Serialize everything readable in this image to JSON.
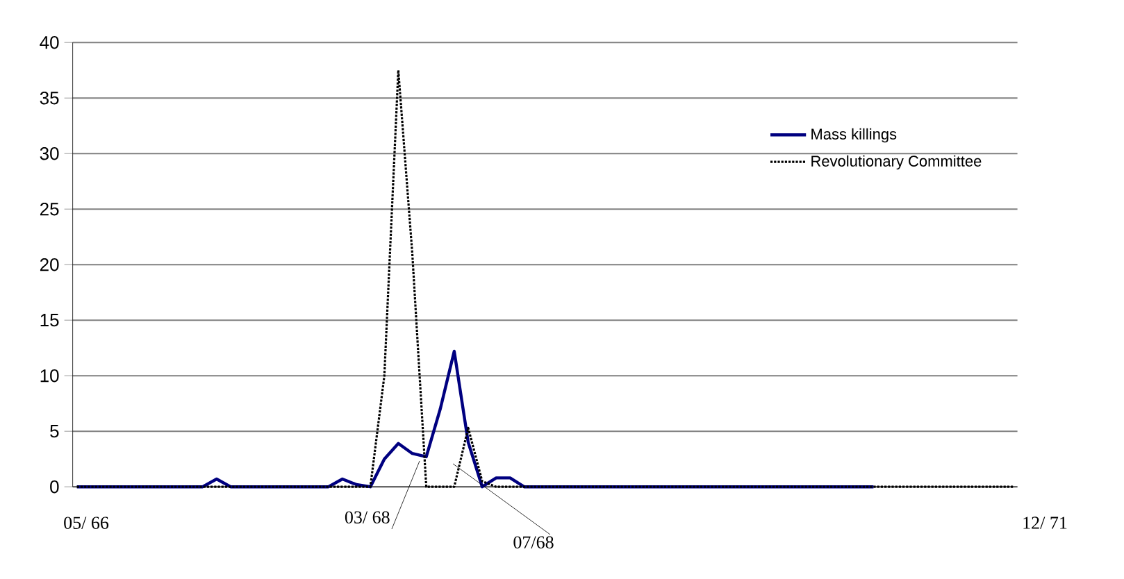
{
  "chart_data": {
    "type": "line",
    "categories": [
      null,
      null,
      null,
      null,
      null,
      null,
      null,
      null,
      null,
      null,
      null,
      null,
      null,
      null,
      null,
      null,
      null,
      null,
      null,
      null,
      null,
      null,
      null,
      null,
      null,
      null,
      null,
      null,
      null,
      null,
      null,
      null,
      null,
      null,
      null,
      null,
      null,
      null,
      null,
      null,
      null,
      null,
      null,
      null,
      null,
      null,
      null,
      null,
      null,
      null,
      null,
      null,
      null,
      null,
      null,
      null,
      null,
      null,
      null,
      null,
      null,
      null,
      null,
      null,
      null,
      null,
      null,
      null
    ],
    "series": [
      {
        "name": "Mass killings",
        "color": "#000080",
        "line_style": "solid",
        "values": [
          0,
          0,
          0,
          0,
          0,
          0,
          0,
          0,
          0,
          0,
          0.7,
          0,
          0,
          0,
          0,
          0,
          0,
          0,
          0,
          0.7,
          0.2,
          0,
          2.5,
          3.9,
          3,
          2.7,
          7,
          12.2,
          4,
          0,
          0.8,
          0.8,
          0,
          0,
          0,
          0,
          0,
          0,
          0,
          0,
          0,
          0,
          0,
          0,
          0,
          0,
          0,
          0,
          0,
          0,
          0,
          0,
          0,
          0,
          0,
          0,
          0,
          0,
          null,
          null,
          null,
          null,
          null,
          null,
          null,
          null,
          null,
          null
        ]
      },
      {
        "name": "Revolutionary Committee",
        "color": "#000000",
        "line_style": "dotted",
        "values": [
          0,
          0,
          0,
          0,
          0,
          0,
          0,
          0,
          0,
          0,
          0,
          0,
          0,
          0,
          0,
          0,
          0,
          0,
          0,
          0,
          0,
          0,
          10,
          37.5,
          21,
          0,
          0,
          0,
          5.3,
          0.5,
          0,
          0,
          0,
          0,
          0,
          0,
          0,
          0,
          0,
          0,
          0,
          0,
          0,
          0,
          0,
          0,
          0,
          0,
          0,
          0,
          0,
          0,
          0,
          0,
          0,
          0,
          0,
          0,
          0,
          0,
          0,
          0,
          0,
          0,
          0,
          0,
          0,
          0
        ]
      }
    ],
    "ylim": [
      0,
      40
    ],
    "yticks": [
      0,
      5,
      10,
      15,
      20,
      25,
      30,
      35,
      40
    ],
    "tick_labels": "y",
    "grid": "y",
    "legend": "top right",
    "marker": "none",
    "annotations": [
      "05/ 66",
      "03/ 68",
      "07/68",
      "12/ 71"
    ]
  }
}
